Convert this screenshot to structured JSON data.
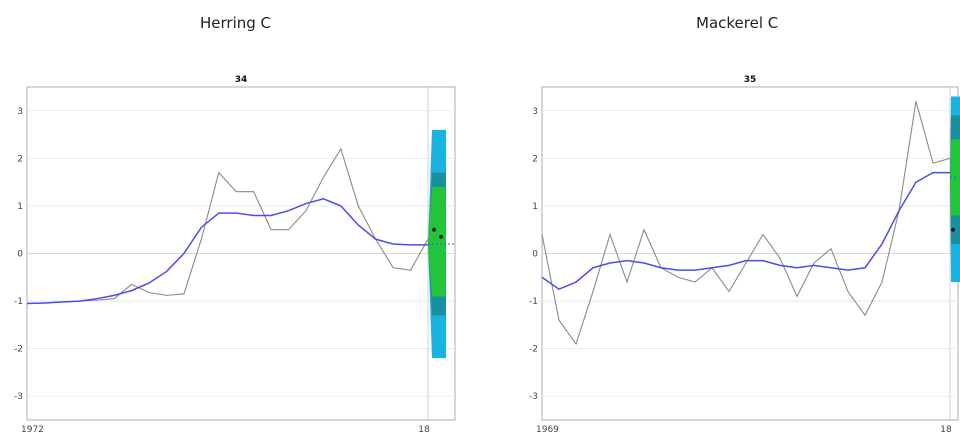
{
  "chart_data": [
    {
      "type": "line",
      "figure_title": "Herring C",
      "title": "34",
      "x_start_label": "1972",
      "x_end_label": "18",
      "ylim": [
        -3.5,
        3.5
      ],
      "yticks": [
        3,
        2,
        1,
        0,
        -1,
        -2,
        -3
      ],
      "grid": true,
      "x": [
        1972,
        1974,
        1976,
        1978,
        1980,
        1982,
        1984,
        1986,
        1988,
        1990,
        1992,
        1994,
        1996,
        1998,
        2000,
        2002,
        2004,
        2006,
        2008,
        2010,
        2012,
        2014,
        2016,
        2018
      ],
      "series": [
        {
          "color": "#8a8a8a",
          "values": [
            -1.05,
            -1.04,
            -1.02,
            -1.0,
            -0.98,
            -0.95,
            -0.65,
            -0.82,
            -0.88,
            -0.85,
            0.3,
            1.7,
            1.3,
            1.3,
            0.5,
            0.5,
            0.9,
            1.6,
            2.2,
            1.0,
            0.3,
            -0.3,
            -0.35,
            0.3
          ]
        },
        {
          "color": "#4a4af5",
          "values": [
            -1.05,
            -1.04,
            -1.02,
            -1.0,
            -0.95,
            -0.88,
            -0.78,
            -0.62,
            -0.38,
            0.0,
            0.55,
            0.85,
            0.85,
            0.8,
            0.8,
            0.9,
            1.05,
            1.15,
            1.0,
            0.6,
            0.3,
            0.2,
            0.18,
            0.18
          ]
        }
      ],
      "forecast": {
        "center": 0.2,
        "outer": [
          -2.2,
          2.6
        ],
        "mid": [
          -1.3,
          1.7
        ],
        "inner": [
          -0.9,
          1.4
        ],
        "point1": 0.5,
        "point2": 0.35
      }
    },
    {
      "type": "line",
      "figure_title": "Mackerel C",
      "title": "35",
      "x_start_label": "1969",
      "x_end_label": "18",
      "ylim": [
        -3.5,
        3.5
      ],
      "yticks": [
        3,
        2,
        1,
        0,
        -1,
        -2,
        -3
      ],
      "grid": true,
      "x": [
        1969,
        1971,
        1973,
        1975,
        1977,
        1979,
        1981,
        1983,
        1985,
        1987,
        1989,
        1991,
        1993,
        1995,
        1997,
        1999,
        2001,
        2003,
        2005,
        2007,
        2009,
        2011,
        2013,
        2015,
        2017
      ],
      "series": [
        {
          "color": "#8a8a8a",
          "values": [
            0.4,
            -1.4,
            -1.9,
            -0.8,
            0.4,
            -0.6,
            0.5,
            -0.3,
            -0.5,
            -0.6,
            -0.3,
            -0.8,
            -0.2,
            0.4,
            -0.1,
            -0.9,
            -0.2,
            0.1,
            -0.8,
            -1.3,
            -0.6,
            0.9,
            3.2,
            1.9,
            2.0
          ]
        },
        {
          "color": "#4a4af5",
          "values": [
            -0.5,
            -0.75,
            -0.6,
            -0.3,
            -0.2,
            -0.15,
            -0.2,
            -0.3,
            -0.35,
            -0.35,
            -0.3,
            -0.25,
            -0.15,
            -0.15,
            -0.25,
            -0.3,
            -0.25,
            -0.3,
            -0.35,
            -0.3,
            0.2,
            0.9,
            1.5,
            1.7,
            1.7
          ]
        }
      ],
      "forecast": {
        "center": 1.6,
        "outer": [
          -0.6,
          3.3
        ],
        "mid": [
          0.2,
          2.9
        ],
        "inner": [
          0.8,
          2.4
        ],
        "point1": 0.5
      }
    }
  ]
}
